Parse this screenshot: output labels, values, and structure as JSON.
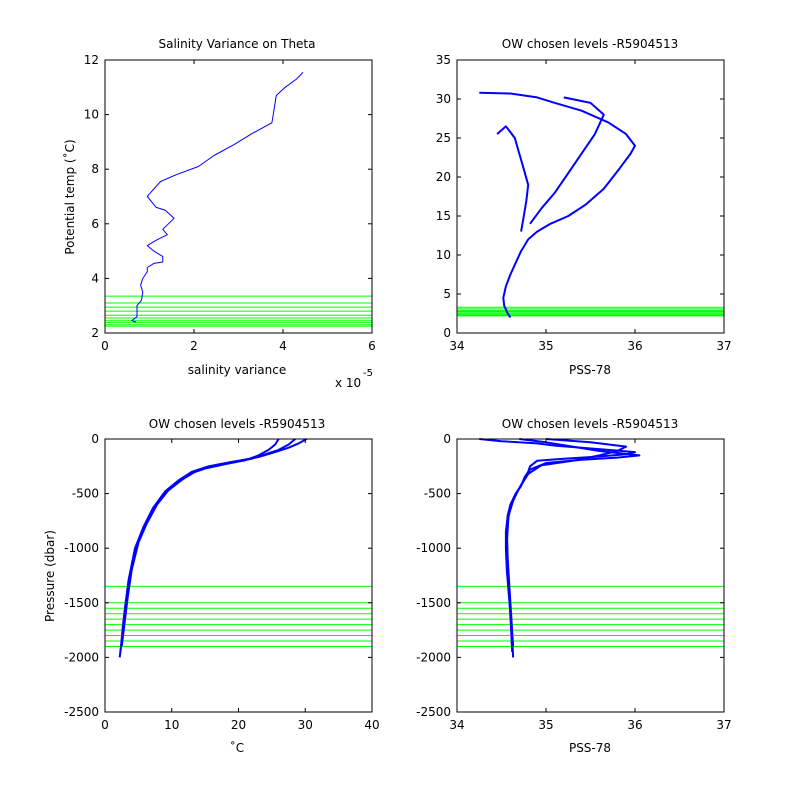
{
  "colors": {
    "profile": "#0000ff",
    "levels": "#00ff00",
    "axes": "#000000",
    "background": "#ffffff"
  },
  "chart_data": [
    {
      "id": "p1",
      "type": "line",
      "title": "Salinity Variance on Theta",
      "xlabel": "salinity variance",
      "ylabel": "Potential temp (˚C)",
      "xlim": [
        0,
        6
      ],
      "ylim": [
        2,
        12
      ],
      "xticks": [
        0,
        2,
        4,
        6
      ],
      "yticks": [
        2,
        4,
        6,
        8,
        10,
        12
      ],
      "x_exponent_label": "x 10",
      "x_exponent_value": "-5",
      "grid": false,
      "series": [
        {
          "values": [
            [
              4.45,
              11.55
            ],
            [
              4.3,
              11.3
            ],
            [
              4.05,
              11.0
            ],
            [
              3.85,
              10.7
            ],
            [
              3.75,
              9.7
            ],
            [
              3.3,
              9.3
            ],
            [
              2.9,
              8.9
            ],
            [
              2.45,
              8.5
            ],
            [
              2.1,
              8.1
            ],
            [
              1.6,
              7.8
            ],
            [
              1.25,
              7.55
            ],
            [
              1.0,
              7.1
            ],
            [
              0.95,
              7.0
            ],
            [
              1.15,
              6.6
            ],
            [
              1.35,
              6.5
            ],
            [
              1.55,
              6.2
            ],
            [
              1.3,
              5.8
            ],
            [
              1.4,
              5.6
            ],
            [
              1.15,
              5.4
            ],
            [
              0.95,
              5.2
            ],
            [
              1.1,
              5.0
            ],
            [
              1.3,
              4.8
            ],
            [
              1.3,
              4.6
            ],
            [
              1.1,
              4.55
            ],
            [
              0.95,
              4.4
            ],
            [
              0.95,
              4.25
            ],
            [
              0.85,
              4.0
            ],
            [
              0.8,
              3.75
            ],
            [
              0.85,
              3.5
            ],
            [
              0.82,
              3.2
            ],
            [
              0.72,
              3.0
            ],
            [
              0.72,
              2.6
            ],
            [
              0.6,
              2.45
            ],
            [
              0.7,
              2.4
            ]
          ]
        }
      ],
      "level_lines": [
        3.35,
        3.1,
        2.95,
        2.8,
        2.65,
        2.55,
        2.45,
        2.38,
        2.3,
        2.25
      ]
    },
    {
      "id": "p2",
      "type": "line",
      "title": "OW chosen levels -R5904513",
      "xlabel": "PSS-78",
      "ylabel": "",
      "xlim": [
        34,
        37
      ],
      "ylim": [
        0,
        35
      ],
      "xticks": [
        34,
        35,
        36,
        37
      ],
      "yticks": [
        0,
        5,
        10,
        15,
        20,
        25,
        30,
        35
      ],
      "grid": false,
      "series": [
        {
          "values": [
            [
              34.6,
              2.0
            ],
            [
              34.57,
              2.5
            ],
            [
              34.53,
              3.5
            ],
            [
              34.52,
              4.5
            ],
            [
              34.55,
              6.0
            ],
            [
              34.6,
              7.5
            ],
            [
              34.66,
              9.0
            ],
            [
              34.72,
              10.5
            ],
            [
              34.8,
              12.0
            ],
            [
              34.9,
              13.0
            ],
            [
              35.05,
              14.0
            ],
            [
              35.25,
              15.0
            ],
            [
              35.45,
              16.5
            ],
            [
              35.65,
              18.5
            ],
            [
              35.82,
              21.0
            ],
            [
              35.95,
              23.0
            ],
            [
              36.0,
              24.0
            ],
            [
              35.9,
              25.5
            ],
            [
              35.7,
              27.0
            ],
            [
              35.4,
              28.5
            ],
            [
              35.1,
              29.5
            ],
            [
              34.9,
              30.2
            ],
            [
              34.6,
              30.7
            ],
            [
              34.25,
              30.8
            ]
          ]
        },
        {
          "values": [
            [
              34.72,
              13.0
            ],
            [
              34.75,
              15.0
            ],
            [
              34.78,
              17.0
            ],
            [
              34.8,
              19.0
            ],
            [
              34.75,
              21.0
            ],
            [
              34.7,
              23.0
            ],
            [
              34.65,
              25.0
            ],
            [
              34.55,
              26.5
            ],
            [
              34.45,
              25.5
            ]
          ]
        },
        {
          "values": [
            [
              34.82,
              14.0
            ],
            [
              34.95,
              16.0
            ],
            [
              35.1,
              18.0
            ],
            [
              35.25,
              20.5
            ],
            [
              35.4,
              23.0
            ],
            [
              35.55,
              25.5
            ],
            [
              35.65,
              28.0
            ],
            [
              35.5,
              29.5
            ],
            [
              35.2,
              30.2
            ]
          ]
        }
      ],
      "level_lines": [
        3.3,
        3.1,
        2.9,
        2.75,
        2.6,
        2.45,
        2.3,
        2.2
      ]
    },
    {
      "id": "p3",
      "type": "line",
      "title": "OW chosen levels -R5904513",
      "xlabel": "˚C",
      "ylabel": "Pressure (dbar)",
      "xlim": [
        0,
        40
      ],
      "ylim": [
        -2500,
        0
      ],
      "xticks": [
        0,
        10,
        20,
        30,
        40
      ],
      "yticks": [
        -2500,
        -2000,
        -1500,
        -1000,
        -500,
        0
      ],
      "grid": false,
      "series": [
        {
          "values": [
            [
              2.2,
              -2000
            ],
            [
              2.4,
              -1900
            ],
            [
              2.7,
              -1700
            ],
            [
              3.1,
              -1500
            ],
            [
              3.6,
              -1300
            ],
            [
              4.3,
              -1100
            ],
            [
              5.2,
              -900
            ],
            [
              6.3,
              -750
            ],
            [
              7.6,
              -600
            ],
            [
              9.0,
              -480
            ],
            [
              11.0,
              -380
            ],
            [
              13.0,
              -300
            ],
            [
              15.5,
              -250
            ],
            [
              19.0,
              -210
            ],
            [
              22.0,
              -180
            ],
            [
              24.0,
              -140
            ],
            [
              26.0,
              -100
            ],
            [
              27.5,
              -50
            ],
            [
              28.5,
              0
            ]
          ]
        },
        {
          "values": [
            [
              2.5,
              -1900
            ],
            [
              2.9,
              -1700
            ],
            [
              3.4,
              -1450
            ],
            [
              4.0,
              -1200
            ],
            [
              5.0,
              -950
            ],
            [
              6.2,
              -780
            ],
            [
              7.8,
              -600
            ],
            [
              9.5,
              -470
            ],
            [
              11.6,
              -370
            ],
            [
              13.8,
              -290
            ],
            [
              16.5,
              -240
            ],
            [
              20.0,
              -200
            ],
            [
              23.0,
              -165
            ],
            [
              25.5,
              -120
            ],
            [
              27.5,
              -80
            ],
            [
              29.0,
              -40
            ],
            [
              30.2,
              0
            ]
          ]
        },
        {
          "values": [
            [
              2.3,
              -1950
            ],
            [
              2.6,
              -1800
            ],
            [
              3.0,
              -1550
            ],
            [
              3.5,
              -1300
            ],
            [
              4.5,
              -1000
            ],
            [
              5.8,
              -800
            ],
            [
              7.2,
              -630
            ],
            [
              8.8,
              -500
            ],
            [
              10.6,
              -400
            ],
            [
              12.6,
              -320
            ],
            [
              15.0,
              -270
            ],
            [
              18.0,
              -230
            ],
            [
              21.0,
              -195
            ],
            [
              23.0,
              -150
            ],
            [
              24.5,
              -100
            ],
            [
              25.5,
              -50
            ],
            [
              26.0,
              0
            ]
          ]
        }
      ],
      "level_lines": [
        -1350,
        -1500,
        -1550,
        -1600,
        -1650,
        -1700,
        -1750,
        -1800,
        -1850,
        -1900
      ]
    },
    {
      "id": "p4",
      "type": "line",
      "title": "OW chosen levels -R5904513",
      "xlabel": "PSS-78",
      "ylabel": "",
      "xlim": [
        34,
        37
      ],
      "ylim": [
        -2500,
        0
      ],
      "xticks": [
        34,
        35,
        36,
        37
      ],
      "yticks": [
        -2500,
        -2000,
        -1500,
        -1000,
        -500,
        0
      ],
      "grid": false,
      "series": [
        {
          "values": [
            [
              34.63,
              -2000
            ],
            [
              34.62,
              -1800
            ],
            [
              34.6,
              -1600
            ],
            [
              34.58,
              -1400
            ],
            [
              34.56,
              -1200
            ],
            [
              34.55,
              -1000
            ],
            [
              34.55,
              -850
            ],
            [
              34.57,
              -700
            ],
            [
              34.6,
              -600
            ],
            [
              34.66,
              -500
            ],
            [
              34.72,
              -430
            ],
            [
              34.76,
              -350
            ],
            [
              34.8,
              -300
            ],
            [
              34.82,
              -250
            ],
            [
              34.9,
              -200
            ],
            [
              35.2,
              -180
            ],
            [
              35.6,
              -160
            ],
            [
              35.9,
              -140
            ],
            [
              36.0,
              -120
            ],
            [
              35.7,
              -100
            ],
            [
              35.4,
              -80
            ],
            [
              35.1,
              -60
            ],
            [
              34.9,
              -40
            ],
            [
              34.5,
              -20
            ],
            [
              34.25,
              0
            ]
          ]
        },
        {
          "values": [
            [
              34.63,
              -1900
            ],
            [
              34.6,
              -1500
            ],
            [
              34.57,
              -1100
            ],
            [
              34.56,
              -800
            ],
            [
              34.6,
              -620
            ],
            [
              34.68,
              -480
            ],
            [
              34.75,
              -380
            ],
            [
              34.82,
              -280
            ],
            [
              35.0,
              -220
            ],
            [
              35.4,
              -190
            ],
            [
              35.8,
              -170
            ],
            [
              36.05,
              -150
            ],
            [
              35.6,
              -110
            ],
            [
              35.3,
              -70
            ],
            [
              35.0,
              -30
            ],
            [
              34.7,
              0
            ]
          ]
        },
        {
          "values": [
            [
              34.62,
              -1950
            ],
            [
              34.58,
              -1300
            ],
            [
              34.56,
              -950
            ],
            [
              34.58,
              -700
            ],
            [
              34.64,
              -540
            ],
            [
              34.72,
              -420
            ],
            [
              34.8,
              -320
            ],
            [
              34.95,
              -240
            ],
            [
              35.3,
              -200
            ],
            [
              35.6,
              -150
            ],
            [
              35.8,
              -110
            ],
            [
              35.9,
              -70
            ],
            [
              35.5,
              -30
            ],
            [
              35.0,
              0
            ]
          ]
        }
      ],
      "level_lines": [
        -1350,
        -1500,
        -1550,
        -1600,
        -1650,
        -1700,
        -1750,
        -1800,
        -1850,
        -1900
      ]
    }
  ]
}
